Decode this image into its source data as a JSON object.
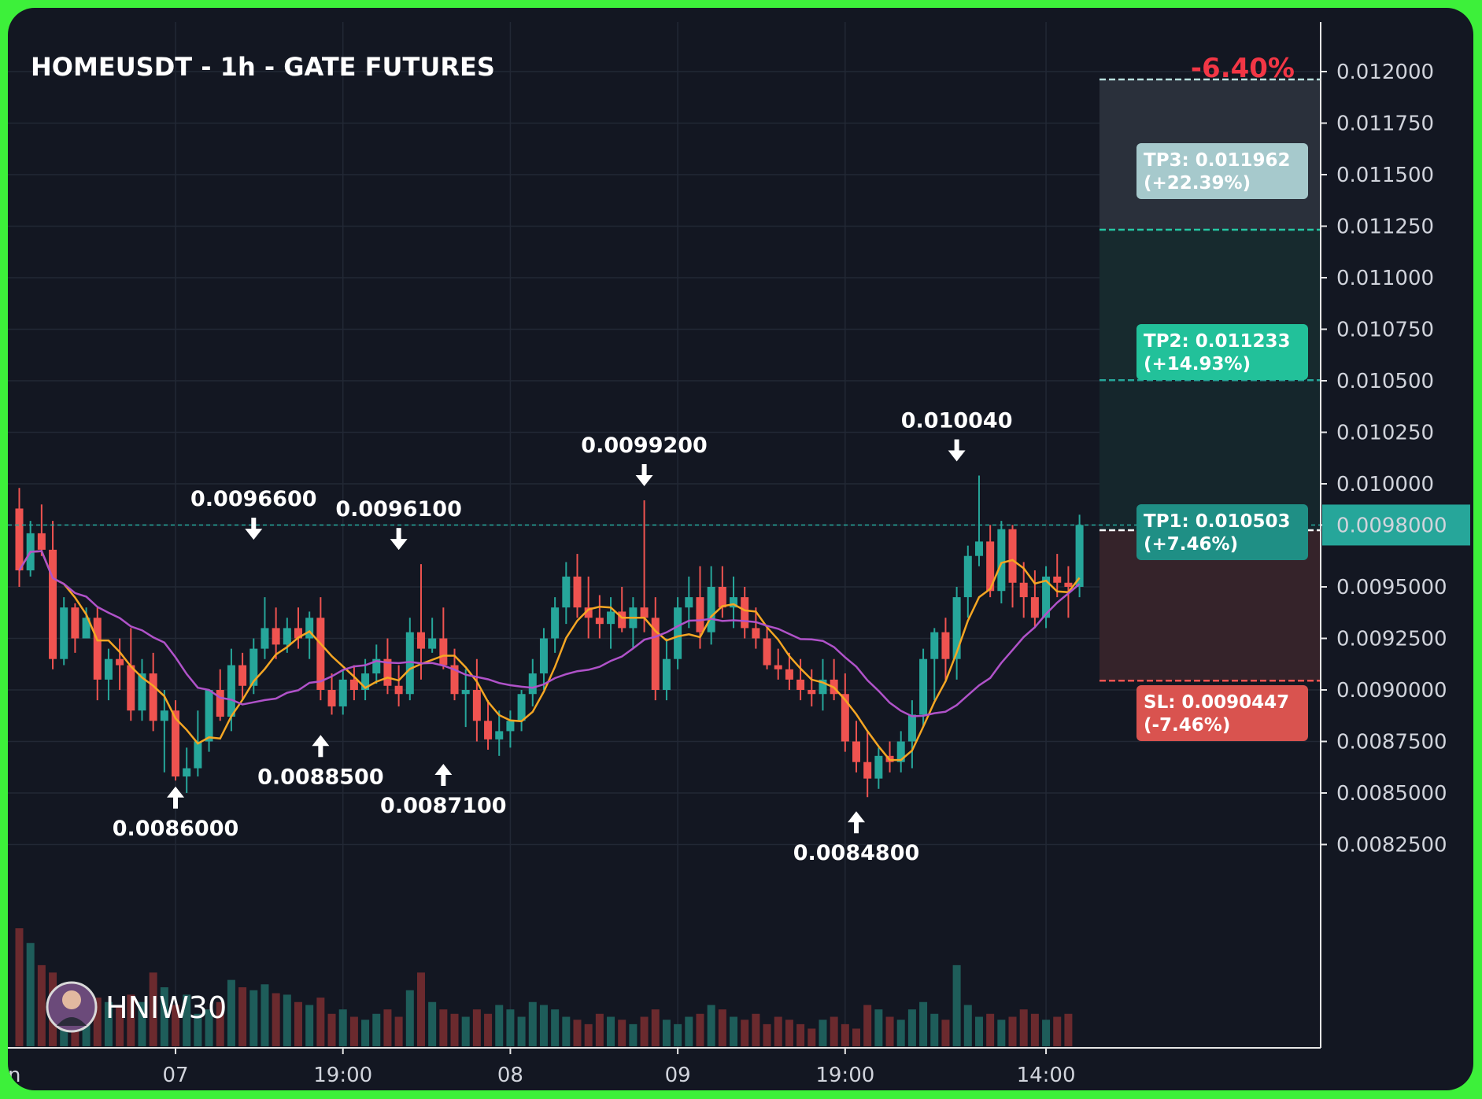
{
  "title": "HOMEUSDT - 1h - GATE FUTURES",
  "change_pct": "-6.40%",
  "author": "HNIW30",
  "current_price_label": "0.0098000",
  "targets": {
    "tp3": {
      "line1": "TP3: 0.011962",
      "line2": "(+22.39%)"
    },
    "tp2": {
      "line1": "TP2: 0.011233",
      "line2": "(+14.93%)"
    },
    "tp1": {
      "line1": "TP1: 0.010503",
      "line2": "(+7.46%)"
    },
    "sl": {
      "line1": "SL: 0.0090447",
      "line2": "(-7.46%)"
    }
  },
  "colors": {
    "background": "#131722",
    "up": "#26a69a",
    "down": "#ef5350",
    "ma_fast": "#f5a623",
    "ma_slow": "#b052c9",
    "frame": "#3df03a"
  },
  "chart_data": {
    "type": "candlestick",
    "symbol": "HOMEUSDT",
    "interval": "1h",
    "exchange": "GATE FUTURES",
    "ylim": [
      0.00815,
      0.01225
    ],
    "y_ticks": [
      "0.012000",
      "0.011750",
      "0.011500",
      "0.011250",
      "0.011000",
      "0.010750",
      "0.010500",
      "0.010250",
      "0.010000",
      "0.0098000",
      "0.0095000",
      "0.0092500",
      "0.0090000",
      "0.0087500",
      "0.0085000",
      "0.0082500"
    ],
    "y_tick_values": [
      0.012,
      0.01175,
      0.0115,
      0.01125,
      0.011,
      0.01075,
      0.0105,
      0.01025,
      0.01,
      0.0098,
      0.0095,
      0.00925,
      0.009,
      0.00875,
      0.0085,
      0.00825
    ],
    "x_ticks": [
      {
        "label": "07",
        "bar": 14
      },
      {
        "label": "19:00",
        "bar": 29
      },
      {
        "label": "08",
        "bar": 44
      },
      {
        "label": "09",
        "bar": 59
      },
      {
        "label": "19:00",
        "bar": 74
      },
      {
        "label": "14:00",
        "bar": 92
      }
    ],
    "x_edge_label": "n",
    "current_price": 0.0098,
    "entry_price": 0.009775,
    "levels": [
      {
        "name": "TP3",
        "price": 0.011962
      },
      {
        "name": "TP2",
        "price": 0.011233
      },
      {
        "name": "TP1",
        "price": 0.010503
      },
      {
        "name": "SL",
        "price": 0.0090447
      }
    ],
    "annotations": [
      {
        "text": "0.0086000",
        "bar": 14,
        "price": 0.0086,
        "dir": "up"
      },
      {
        "text": "0.0096600",
        "bar": 21,
        "price": 0.00966,
        "dir": "down"
      },
      {
        "text": "0.0088500",
        "bar": 27,
        "price": 0.00885,
        "dir": "up"
      },
      {
        "text": "0.0096100",
        "bar": 34,
        "price": 0.00961,
        "dir": "down"
      },
      {
        "text": "0.0087100",
        "bar": 38,
        "price": 0.00871,
        "dir": "up"
      },
      {
        "text": "0.0099200",
        "bar": 56,
        "price": 0.00992,
        "dir": "down"
      },
      {
        "text": "0.0084800",
        "bar": 75,
        "price": 0.00848,
        "dir": "up"
      },
      {
        "text": "0.010040",
        "bar": 84,
        "price": 0.01004,
        "dir": "down"
      }
    ],
    "candles": [
      [
        0.00988,
        0.00998,
        0.0095,
        0.00958
      ],
      [
        0.00958,
        0.00982,
        0.00955,
        0.00976
      ],
      [
        0.00976,
        0.0099,
        0.00965,
        0.00968
      ],
      [
        0.00968,
        0.00982,
        0.0091,
        0.00915
      ],
      [
        0.00915,
        0.00945,
        0.00912,
        0.0094
      ],
      [
        0.0094,
        0.00942,
        0.00918,
        0.00925
      ],
      [
        0.00925,
        0.0094,
        0.00925,
        0.00935
      ],
      [
        0.00935,
        0.0094,
        0.00895,
        0.00905
      ],
      [
        0.00905,
        0.0092,
        0.00895,
        0.00915
      ],
      [
        0.00915,
        0.00925,
        0.009,
        0.00912
      ],
      [
        0.00912,
        0.0093,
        0.00885,
        0.0089
      ],
      [
        0.0089,
        0.00915,
        0.00885,
        0.00908
      ],
      [
        0.00908,
        0.00918,
        0.0088,
        0.00885
      ],
      [
        0.00885,
        0.009,
        0.0086,
        0.0089
      ],
      [
        0.0089,
        0.00895,
        0.00856,
        0.00858
      ],
      [
        0.00858,
        0.00872,
        0.0085,
        0.00862
      ],
      [
        0.00862,
        0.0089,
        0.00858,
        0.00875
      ],
      [
        0.00875,
        0.009,
        0.0087,
        0.009
      ],
      [
        0.009,
        0.0091,
        0.00885,
        0.00887
      ],
      [
        0.00887,
        0.0092,
        0.0088,
        0.00912
      ],
      [
        0.00912,
        0.00918,
        0.00895,
        0.00902
      ],
      [
        0.00902,
        0.00925,
        0.00898,
        0.0092
      ],
      [
        0.0092,
        0.00945,
        0.00915,
        0.0093
      ],
      [
        0.0093,
        0.0094,
        0.00915,
        0.00922
      ],
      [
        0.00922,
        0.00935,
        0.00918,
        0.0093
      ],
      [
        0.0093,
        0.0094,
        0.0092,
        0.00925
      ],
      [
        0.00925,
        0.00938,
        0.00915,
        0.00935
      ],
      [
        0.00935,
        0.00945,
        0.00895,
        0.009
      ],
      [
        0.009,
        0.00908,
        0.00888,
        0.00892
      ],
      [
        0.00892,
        0.0091,
        0.00888,
        0.00905
      ],
      [
        0.00905,
        0.00912,
        0.00895,
        0.009
      ],
      [
        0.009,
        0.00915,
        0.00895,
        0.00908
      ],
      [
        0.00908,
        0.00922,
        0.00903,
        0.00915
      ],
      [
        0.00915,
        0.00925,
        0.00898,
        0.00902
      ],
      [
        0.00902,
        0.00912,
        0.00892,
        0.00898
      ],
      [
        0.00898,
        0.00935,
        0.00895,
        0.00928
      ],
      [
        0.00928,
        0.00961,
        0.00905,
        0.0092
      ],
      [
        0.0092,
        0.00935,
        0.00918,
        0.00925
      ],
      [
        0.00925,
        0.0094,
        0.0091,
        0.00912
      ],
      [
        0.00912,
        0.0092,
        0.00895,
        0.00898
      ],
      [
        0.00898,
        0.0091,
        0.00882,
        0.009
      ],
      [
        0.009,
        0.00915,
        0.00875,
        0.00885
      ],
      [
        0.00885,
        0.00895,
        0.00871,
        0.00876
      ],
      [
        0.00876,
        0.0089,
        0.00868,
        0.0088
      ],
      [
        0.0088,
        0.0089,
        0.00872,
        0.00885
      ],
      [
        0.00885,
        0.009,
        0.0088,
        0.00898
      ],
      [
        0.00898,
        0.00915,
        0.00892,
        0.00908
      ],
      [
        0.00908,
        0.0093,
        0.009,
        0.00925
      ],
      [
        0.00925,
        0.00945,
        0.00918,
        0.0094
      ],
      [
        0.0094,
        0.00962,
        0.00932,
        0.00955
      ],
      [
        0.00955,
        0.00966,
        0.00935,
        0.0094
      ],
      [
        0.0094,
        0.00955,
        0.00925,
        0.00935
      ],
      [
        0.00935,
        0.00946,
        0.00925,
        0.00932
      ],
      [
        0.00932,
        0.00945,
        0.0092,
        0.00938
      ],
      [
        0.00938,
        0.0095,
        0.00928,
        0.0093
      ],
      [
        0.0093,
        0.00945,
        0.0092,
        0.0094
      ],
      [
        0.0094,
        0.00992,
        0.00928,
        0.00935
      ],
      [
        0.00935,
        0.00945,
        0.00895,
        0.009
      ],
      [
        0.009,
        0.00925,
        0.00895,
        0.00915
      ],
      [
        0.00915,
        0.00945,
        0.0091,
        0.0094
      ],
      [
        0.0094,
        0.00955,
        0.0093,
        0.00945
      ],
      [
        0.00945,
        0.0096,
        0.0092,
        0.00928
      ],
      [
        0.00928,
        0.0096,
        0.00922,
        0.0095
      ],
      [
        0.0095,
        0.0096,
        0.00935,
        0.0094
      ],
      [
        0.0094,
        0.00955,
        0.0093,
        0.00945
      ],
      [
        0.00945,
        0.0095,
        0.00925,
        0.0093
      ],
      [
        0.0093,
        0.0094,
        0.0092,
        0.00925
      ],
      [
        0.00925,
        0.0093,
        0.0091,
        0.00912
      ],
      [
        0.00912,
        0.0092,
        0.00905,
        0.0091
      ],
      [
        0.0091,
        0.00918,
        0.009,
        0.00905
      ],
      [
        0.00905,
        0.00915,
        0.00895,
        0.009
      ],
      [
        0.009,
        0.0091,
        0.00892,
        0.00898
      ],
      [
        0.00898,
        0.00915,
        0.0089,
        0.00905
      ],
      [
        0.00905,
        0.00915,
        0.00895,
        0.00898
      ],
      [
        0.00898,
        0.00908,
        0.0087,
        0.00875
      ],
      [
        0.00875,
        0.00885,
        0.0086,
        0.00865
      ],
      [
        0.00865,
        0.0088,
        0.00848,
        0.00857
      ],
      [
        0.00857,
        0.00872,
        0.00852,
        0.00868
      ],
      [
        0.00868,
        0.00875,
        0.0086,
        0.00865
      ],
      [
        0.00865,
        0.0088,
        0.0086,
        0.00875
      ],
      [
        0.00875,
        0.00895,
        0.00862,
        0.00888
      ],
      [
        0.00888,
        0.0092,
        0.00882,
        0.00915
      ],
      [
        0.00915,
        0.0093,
        0.00895,
        0.00928
      ],
      [
        0.00928,
        0.00935,
        0.00905,
        0.00915
      ],
      [
        0.00915,
        0.0095,
        0.00905,
        0.00945
      ],
      [
        0.00945,
        0.0097,
        0.00935,
        0.00965
      ],
      [
        0.00965,
        0.01004,
        0.0096,
        0.00972
      ],
      [
        0.00972,
        0.0098,
        0.00945,
        0.00948
      ],
      [
        0.00948,
        0.00982,
        0.00942,
        0.00978
      ],
      [
        0.00978,
        0.0098,
        0.0094,
        0.00952
      ],
      [
        0.00952,
        0.00962,
        0.00935,
        0.00945
      ],
      [
        0.00945,
        0.00958,
        0.0093,
        0.00935
      ],
      [
        0.00935,
        0.0096,
        0.0093,
        0.00955
      ],
      [
        0.00955,
        0.00966,
        0.00945,
        0.00952
      ],
      [
        0.00952,
        0.0096,
        0.00935,
        0.0095
      ],
      [
        0.0095,
        0.00985,
        0.00945,
        0.0098
      ]
    ],
    "volume": [
      80,
      70,
      55,
      50,
      42,
      35,
      38,
      33,
      30,
      28,
      35,
      30,
      50,
      40,
      28,
      35,
      22,
      25,
      30,
      45,
      40,
      38,
      42,
      36,
      35,
      30,
      28,
      33,
      22,
      25,
      20,
      18,
      22,
      25,
      20,
      38,
      50,
      30,
      25,
      22,
      20,
      25,
      22,
      28,
      25,
      20,
      30,
      28,
      25,
      20,
      18,
      15,
      22,
      20,
      18,
      15,
      20,
      25,
      18,
      15,
      20,
      22,
      28,
      25,
      20,
      18,
      22,
      15,
      20,
      18,
      15,
      12,
      18,
      20,
      15,
      12,
      28,
      25,
      20,
      18,
      25,
      30,
      22,
      18,
      55,
      28,
      20,
      22,
      18,
      20,
      25,
      22,
      18,
      20,
      22
    ]
  }
}
